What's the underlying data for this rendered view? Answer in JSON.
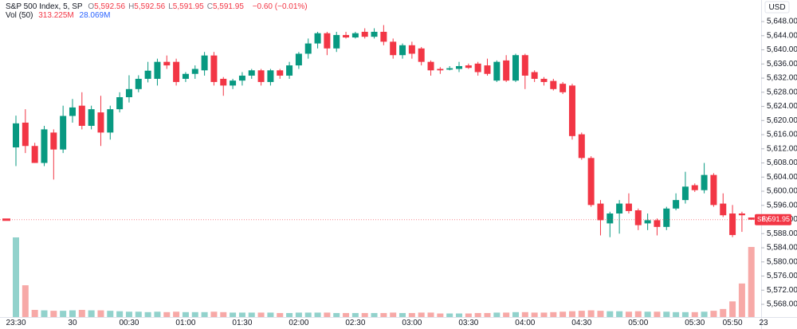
{
  "chart_data": {
    "type": "candlestick",
    "title": "S&P 500 Index, 5, SP",
    "ohlc": [
      {
        "key": "O",
        "value": "5,592.56"
      },
      {
        "key": "H",
        "value": "5,592.56"
      },
      {
        "key": "L",
        "value": "5,591.95"
      },
      {
        "key": "C",
        "value": "5,591.95"
      }
    ],
    "change": "−0.60 (−0.01%)",
    "volume_header": {
      "label": "Vol (50)",
      "value": "313.225M",
      "ma": "28.069M"
    },
    "currency": "USD",
    "last_price": {
      "symbol": "SPX",
      "label": "5,591.95",
      "value": 5591.95
    },
    "up_color": "#089981",
    "down_color": "#f23645",
    "volume_up_color": "#92d2cc",
    "volume_down_color": "#f7a9a7",
    "categories": [
      "23:30",
      null,
      null,
      null,
      null,
      null,
      "30",
      null,
      null,
      null,
      null,
      null,
      "00:30",
      null,
      null,
      null,
      null,
      null,
      "01:00",
      null,
      null,
      null,
      null,
      null,
      "01:30",
      null,
      null,
      null,
      null,
      null,
      "02:00",
      null,
      null,
      null,
      null,
      null,
      "02:30",
      null,
      null,
      null,
      null,
      null,
      "03:00",
      null,
      null,
      null,
      null,
      null,
      "03:30",
      null,
      null,
      null,
      null,
      null,
      "04:00",
      null,
      null,
      null,
      null,
      null,
      "04:30",
      null,
      null,
      null,
      null,
      null,
      "05:00",
      null,
      null,
      null,
      null,
      null,
      "05:30",
      null,
      null,
      null,
      "05:50",
      null,
      null
    ],
    "next_label": "23",
    "open": [
      5612.4,
      5619.4,
      5612.8,
      5608.0,
      5616.6,
      5611.8,
      5621.3,
      5624.2,
      5618.5,
      5622.3,
      5616.6,
      5623.2,
      5626.6,
      5628.9,
      5631.8,
      5631.8,
      5636.6,
      5636.6,
      5631.8,
      5633.2,
      5634.2,
      5638.4,
      5631.8,
      5629.9,
      5631.3,
      5632.7,
      5634.2,
      5630.9,
      5634.2,
      5632.7,
      5635.6,
      5638.9,
      5641.8,
      5644.7,
      5640.4,
      5644.2,
      5643.5,
      5645.1,
      5643.7,
      5645.1,
      5642.3,
      5638.5,
      5641.3,
      5640.4,
      5636.6,
      5634.6,
      5634.4,
      5634.6,
      5635.6,
      5636.1,
      5635.6,
      5631.3,
      5637.0,
      5631.3,
      5638.5,
      5633.7,
      5631.8,
      5631.2,
      5630.4,
      5629.9,
      5616.1,
      5609.4,
      5596.5,
      5590.9,
      5593.7,
      5596.5,
      5594.6,
      5590.9,
      5591.8,
      5589.9,
      5595.1,
      5597.5,
      5601.7,
      5600.3,
      5604.6,
      5596.5,
      5593.7,
      5593.7,
      5592.56
    ],
    "high": [
      5621.4,
      5623.2,
      5613.7,
      5618.5,
      5617.5,
      5624.2,
      5626.1,
      5628.0,
      5624.2,
      5627.0,
      5624.2,
      5628.0,
      5632.8,
      5632.8,
      5636.6,
      5637.5,
      5638.4,
      5637.5,
      5633.7,
      5635.6,
      5639.4,
      5639.4,
      5632.3,
      5631.8,
      5633.7,
      5634.6,
      5634.6,
      5634.6,
      5634.6,
      5636.6,
      5639.4,
      5643.2,
      5645.1,
      5645.1,
      5645.1,
      5645.1,
      5645.1,
      5646.1,
      5646.1,
      5647.0,
      5643.2,
      5641.8,
      5642.3,
      5640.8,
      5637.0,
      5635.1,
      5635.4,
      5636.6,
      5636.1,
      5636.6,
      5637.5,
      5637.0,
      5638.5,
      5638.9,
      5638.9,
      5634.2,
      5632.3,
      5631.8,
      5630.9,
      5630.4,
      5616.6,
      5609.9,
      5597.5,
      5594.2,
      5597.5,
      5599.4,
      5595.1,
      5593.7,
      5592.3,
      5595.6,
      5599.4,
      5605.5,
      5602.2,
      5608.0,
      5605.1,
      5599.4,
      5596.1,
      5594.2,
      5592.56
    ],
    "low": [
      5607.1,
      5610.8,
      5608.0,
      5607.1,
      5603.3,
      5610.8,
      5619.4,
      5617.5,
      5617.5,
      5612.8,
      5614.6,
      5622.3,
      5625.1,
      5628.0,
      5630.8,
      5629.9,
      5634.6,
      5629.9,
      5630.9,
      5631.8,
      5632.7,
      5629.9,
      5627.0,
      5628.9,
      5629.9,
      5631.8,
      5629.9,
      5629.9,
      5631.8,
      5631.8,
      5634.6,
      5637.5,
      5640.4,
      5638.5,
      5639.4,
      5643.2,
      5643.2,
      5643.2,
      5643.2,
      5641.3,
      5637.5,
      5637.5,
      5637.5,
      5635.6,
      5632.7,
      5633.2,
      5634.2,
      5633.7,
      5634.6,
      5632.7,
      5632.7,
      5630.9,
      5630.9,
      5630.9,
      5628.9,
      5630.9,
      5629.9,
      5628.5,
      5627.5,
      5614.6,
      5608.9,
      5595.6,
      5587.5,
      5587.0,
      5588.0,
      5593.7,
      5589.0,
      5589.0,
      5587.5,
      5589.0,
      5594.6,
      5596.5,
      5599.8,
      5599.4,
      5595.6,
      5592.7,
      5587.0,
      5588.5,
      5591.95
    ],
    "close": [
      5619.2,
      5612.8,
      5608.0,
      5617.5,
      5611.8,
      5621.3,
      5623.7,
      5618.5,
      5623.2,
      5616.6,
      5623.2,
      5626.6,
      5628.9,
      5631.8,
      5634.1,
      5636.6,
      5635.6,
      5630.9,
      5633.2,
      5634.6,
      5638.4,
      5630.9,
      5629.9,
      5631.3,
      5632.7,
      5634.2,
      5630.9,
      5634.2,
      5632.7,
      5635.6,
      5638.9,
      5641.8,
      5644.7,
      5640.4,
      5644.2,
      5643.5,
      5644.7,
      5643.7,
      5645.1,
      5642.3,
      5638.5,
      5641.3,
      5638.9,
      5636.6,
      5634.2,
      5634.2,
      5634.8,
      5635.4,
      5634.9,
      5633.7,
      5633.2,
      5636.6,
      5631.3,
      5638.5,
      5632.7,
      5631.8,
      5630.9,
      5628.9,
      5628.0,
      5615.6,
      5609.4,
      5596.1,
      5591.8,
      5593.7,
      5596.5,
      5594.4,
      5590.4,
      5591.8,
      5589.9,
      5595.1,
      5597.5,
      5601.3,
      5600.3,
      5604.6,
      5596.1,
      5593.2,
      5587.6,
      5593.2,
      5591.95
    ],
    "volume": [
      356,
      142,
      32,
      30,
      28,
      28,
      30,
      32,
      30,
      30,
      28,
      26,
      24,
      24,
      22,
      24,
      22,
      24,
      22,
      22,
      22,
      24,
      22,
      20,
      20,
      20,
      20,
      20,
      18,
      18,
      20,
      20,
      20,
      20,
      18,
      18,
      18,
      18,
      18,
      18,
      20,
      18,
      18,
      20,
      20,
      16,
      16,
      16,
      16,
      18,
      18,
      20,
      20,
      22,
      22,
      20,
      20,
      22,
      24,
      26,
      28,
      30,
      28,
      26,
      26,
      24,
      26,
      24,
      24,
      24,
      22,
      22,
      22,
      24,
      28,
      36,
      70,
      150,
      313.225
    ],
    "ylim": [
      5564.4,
      5654.1
    ],
    "yticks": [
      {
        "value": 5648,
        "label": "5,648.00"
      },
      {
        "value": 5644,
        "label": "5,644.00"
      },
      {
        "value": 5640,
        "label": "5,640.00"
      },
      {
        "value": 5636,
        "label": "5,636.00"
      },
      {
        "value": 5632,
        "label": "5,632.00"
      },
      {
        "value": 5628,
        "label": "5,628.00"
      },
      {
        "value": 5624,
        "label": "5,624.00"
      },
      {
        "value": 5620,
        "label": "5,620.00"
      },
      {
        "value": 5616,
        "label": "5,616.00"
      },
      {
        "value": 5612,
        "label": "5,612.00"
      },
      {
        "value": 5608,
        "label": "5,608.00"
      },
      {
        "value": 5604,
        "label": "5,604.00"
      },
      {
        "value": 5600,
        "label": "5,600.00"
      },
      {
        "value": 5596,
        "label": "5,596.00"
      },
      {
        "value": 5592,
        "label": "5,592.00"
      },
      {
        "value": 5588,
        "label": "5,588.00"
      },
      {
        "value": 5584,
        "label": "5,584.00"
      },
      {
        "value": 5580,
        "label": "5,580.00"
      },
      {
        "value": 5576,
        "label": "5,576.00"
      },
      {
        "value": 5572,
        "label": "5,572.00"
      },
      {
        "value": 5568,
        "label": "5,568.00"
      }
    ],
    "grid": false
  }
}
